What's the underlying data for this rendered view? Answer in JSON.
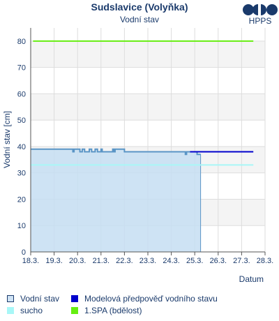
{
  "header": {
    "title": "Sudslavice (Volyňka)",
    "subtitle": "Vodní stav",
    "logo_text": "HPPS"
  },
  "legend": {
    "items": [
      {
        "label": "Vodní stav",
        "color": "#cfe3f5",
        "border": "#1a3a6b"
      },
      {
        "label": "Modelová předpověď vodního stavu",
        "color": "#0000cc",
        "border": "#0000cc"
      },
      {
        "label": "sucho",
        "color": "#a8f7f7",
        "border": "#a8f7f7"
      },
      {
        "label": "1.SPA (bdělost)",
        "color": "#66ee11",
        "border": "#66ee11"
      }
    ]
  },
  "chart_data": {
    "type": "line",
    "ylabel": "Vodní stav [cm]",
    "xlabel": "Datum",
    "ylim": [
      0,
      85
    ],
    "yticks": [
      0,
      10,
      20,
      30,
      40,
      50,
      60,
      70,
      80
    ],
    "xlim": [
      0,
      10
    ],
    "xticks": [
      "18.3.",
      "19.3.",
      "20.3.",
      "21.3.",
      "22.3.",
      "23.3.",
      "24.3.",
      "25.3.",
      "26.3.",
      "27.3.",
      "28.3."
    ],
    "grid": true,
    "colors": {
      "observed_fill": "#c6def2",
      "observed_line": "#5a95c6",
      "forecast": "#0000cc",
      "drought": "#a8f7f7",
      "spa1": "#66ee11",
      "band": "#f4f4f4"
    },
    "series": [
      {
        "name": "Vodní stav",
        "style": "area",
        "points": [
          [
            0.0,
            39
          ],
          [
            1.8,
            39
          ],
          [
            1.8,
            38
          ],
          [
            1.85,
            38
          ],
          [
            1.85,
            39
          ],
          [
            2.1,
            39
          ],
          [
            2.1,
            38
          ],
          [
            2.2,
            38
          ],
          [
            2.2,
            39
          ],
          [
            2.3,
            39
          ],
          [
            2.3,
            38
          ],
          [
            2.5,
            38
          ],
          [
            2.5,
            39
          ],
          [
            2.6,
            39
          ],
          [
            2.6,
            38
          ],
          [
            2.75,
            38
          ],
          [
            2.75,
            39
          ],
          [
            2.85,
            39
          ],
          [
            2.85,
            38
          ],
          [
            3.0,
            38
          ],
          [
            3.0,
            39
          ],
          [
            3.05,
            39
          ],
          [
            3.05,
            38
          ],
          [
            3.5,
            38
          ],
          [
            3.5,
            39
          ],
          [
            3.55,
            39
          ],
          [
            3.55,
            38
          ],
          [
            3.6,
            38
          ],
          [
            3.6,
            39
          ],
          [
            4.0,
            39
          ],
          [
            4.0,
            38
          ],
          [
            6.6,
            38
          ],
          [
            6.6,
            37
          ],
          [
            6.65,
            37
          ],
          [
            6.65,
            38
          ],
          [
            7.1,
            38
          ],
          [
            7.1,
            37
          ],
          [
            7.25,
            37
          ]
        ]
      },
      {
        "name": "Modelová předpověď vodního stavu",
        "style": "line",
        "points": [
          [
            6.8,
            38
          ],
          [
            9.5,
            38
          ]
        ]
      },
      {
        "name": "sucho",
        "style": "hline",
        "points": [
          [
            0,
            33
          ],
          [
            9.5,
            33
          ]
        ]
      },
      {
        "name": "1.SPA (bdělost)",
        "style": "hline",
        "points": [
          [
            0.1,
            80
          ],
          [
            9.5,
            80
          ]
        ]
      }
    ]
  }
}
